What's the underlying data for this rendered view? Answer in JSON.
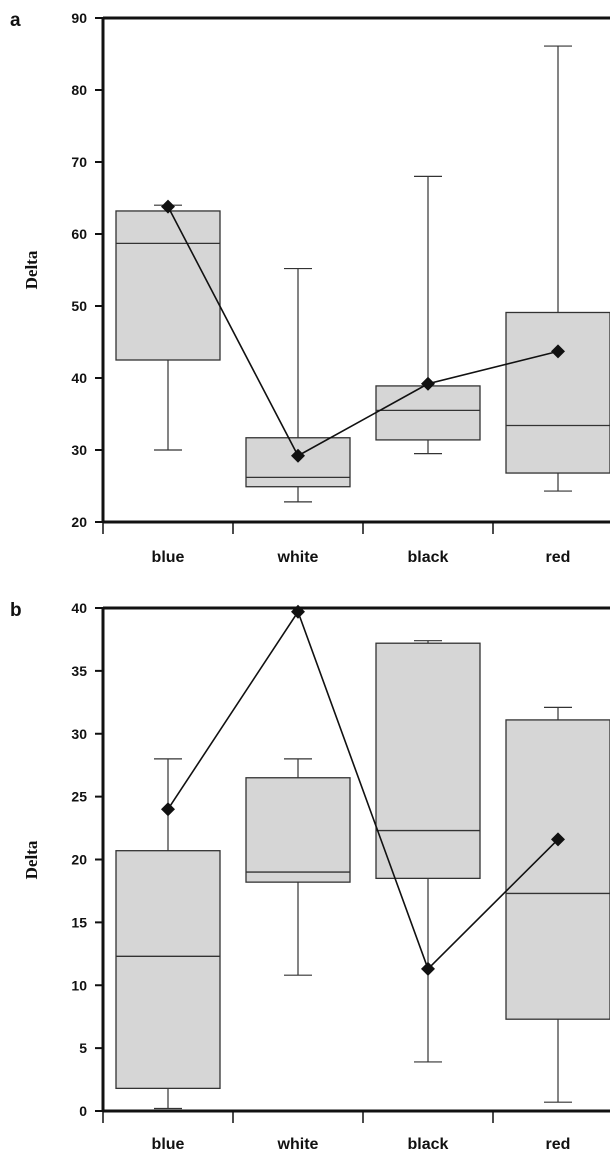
{
  "chart_data": [
    {
      "type": "box",
      "panel_label": "a",
      "ylabel": "Delta",
      "ylim": [
        20,
        90
      ],
      "yticks": [
        20,
        30,
        40,
        50,
        60,
        70,
        80,
        90
      ],
      "categories": [
        "blue",
        "white",
        "black",
        "red"
      ],
      "boxes": [
        {
          "whisker_low": 30,
          "q1": 42.5,
          "median": 58.7,
          "q3": 63.2,
          "whisker_high": 64
        },
        {
          "whisker_low": 22.8,
          "q1": 24.9,
          "median": 26.2,
          "q3": 31.7,
          "whisker_high": 55.2
        },
        {
          "whisker_low": 29.5,
          "q1": 31.4,
          "median": 35.5,
          "q3": 38.9,
          "whisker_high": 68
        },
        {
          "whisker_low": 24.3,
          "q1": 26.8,
          "median": 33.4,
          "q3": 49.1,
          "whisker_high": 86.1
        }
      ],
      "mean_line": [
        63.8,
        29.2,
        39.2,
        43.7
      ]
    },
    {
      "type": "box",
      "panel_label": "b",
      "ylabel": "Delta",
      "ylim": [
        0,
        40
      ],
      "yticks": [
        0,
        5,
        10,
        15,
        20,
        25,
        30,
        35,
        40
      ],
      "categories": [
        "blue",
        "white",
        "black",
        "red"
      ],
      "boxes": [
        {
          "whisker_low": 0.2,
          "q1": 1.8,
          "median": 12.3,
          "q3": 20.7,
          "whisker_high": 28
        },
        {
          "whisker_low": 10.8,
          "q1": 18.2,
          "median": 19,
          "q3": 26.5,
          "whisker_high": 28
        },
        {
          "whisker_low": 3.9,
          "q1": 18.5,
          "median": 22.3,
          "q3": 37.2,
          "whisker_high": 37.4
        },
        {
          "whisker_low": 0.7,
          "q1": 7.3,
          "median": 17.3,
          "q3": 31.1,
          "whisker_high": 32.1
        }
      ],
      "mean_line": [
        24,
        39.7,
        11.3,
        21.6
      ]
    }
  ]
}
